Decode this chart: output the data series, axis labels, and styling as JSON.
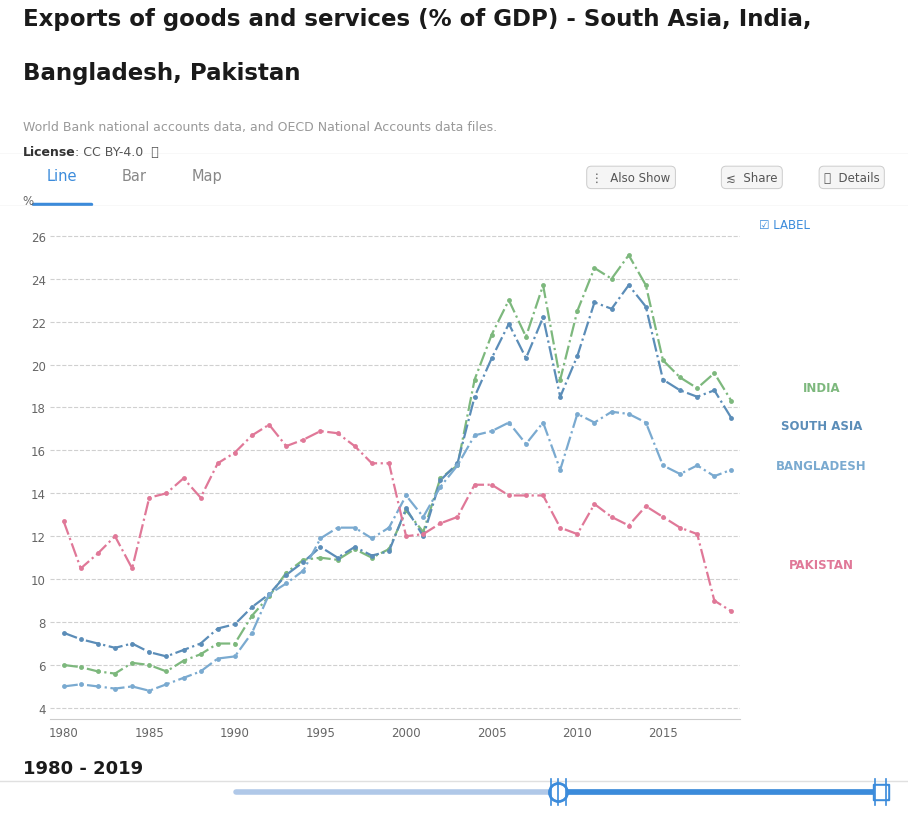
{
  "title_line1": "Exports of goods and services (% of GDP) - South Asia, India,",
  "title_line2": "Bangladesh, Pakistan",
  "subtitle": "World Bank national accounts data, and OECD National Accounts data files.",
  "ylabel": "%",
  "ylim": [
    3.5,
    27
  ],
  "yticks": [
    4,
    6,
    8,
    10,
    12,
    14,
    16,
    18,
    20,
    22,
    24,
    26
  ],
  "xticks": [
    1980,
    1985,
    1990,
    1995,
    2000,
    2005,
    2010,
    2015
  ],
  "bg_color": "#f5f5f5",
  "plot_bg_color": "#ffffff",
  "india_color": "#7db87d",
  "india_label_bg": "#daeeda",
  "sa_color": "#5b8db8",
  "sa_label_bg": "#cfe0f0",
  "bd_color": "#7aaad0",
  "bd_label_bg": "#cfe0f0",
  "pk_color": "#e07898",
  "pk_label_bg": "#fad0dc",
  "india_years": [
    1980,
    1981,
    1982,
    1983,
    1984,
    1985,
    1986,
    1987,
    1988,
    1989,
    1990,
    1991,
    1992,
    1993,
    1994,
    1995,
    1996,
    1997,
    1998,
    1999,
    2000,
    2001,
    2002,
    2003,
    2004,
    2005,
    2006,
    2007,
    2008,
    2009,
    2010,
    2011,
    2012,
    2013,
    2014,
    2015,
    2016,
    2017,
    2018,
    2019
  ],
  "india_values": [
    6.0,
    5.9,
    5.7,
    5.6,
    6.1,
    6.0,
    5.7,
    6.2,
    6.5,
    7.0,
    7.0,
    8.3,
    9.2,
    10.3,
    10.9,
    11.0,
    10.9,
    11.4,
    11.0,
    11.4,
    13.2,
    12.2,
    14.7,
    15.3,
    19.3,
    21.4,
    23.0,
    21.3,
    23.7,
    19.3,
    22.5,
    24.5,
    24.0,
    25.1,
    23.7,
    20.2,
    19.4,
    18.9,
    19.6,
    18.3
  ],
  "sa_years": [
    1980,
    1981,
    1982,
    1983,
    1984,
    1985,
    1986,
    1987,
    1988,
    1989,
    1990,
    1991,
    1992,
    1993,
    1994,
    1995,
    1996,
    1997,
    1998,
    1999,
    2000,
    2001,
    2002,
    2003,
    2004,
    2005,
    2006,
    2007,
    2008,
    2009,
    2010,
    2011,
    2012,
    2013,
    2014,
    2015,
    2016,
    2017,
    2018,
    2019
  ],
  "sa_values": [
    7.5,
    7.2,
    7.0,
    6.8,
    7.0,
    6.6,
    6.4,
    6.7,
    7.0,
    7.7,
    7.9,
    8.7,
    9.3,
    10.2,
    10.8,
    11.5,
    11.0,
    11.5,
    11.1,
    11.3,
    13.3,
    12.0,
    14.6,
    15.4,
    18.5,
    20.3,
    21.9,
    20.3,
    22.2,
    18.5,
    20.4,
    22.9,
    22.6,
    23.7,
    22.7,
    19.3,
    18.8,
    18.5,
    18.8,
    17.5
  ],
  "bd_years": [
    1980,
    1981,
    1982,
    1983,
    1984,
    1985,
    1986,
    1987,
    1988,
    1989,
    1990,
    1991,
    1992,
    1993,
    1994,
    1995,
    1996,
    1997,
    1998,
    1999,
    2000,
    2001,
    2002,
    2003,
    2004,
    2005,
    2006,
    2007,
    2008,
    2009,
    2010,
    2011,
    2012,
    2013,
    2014,
    2015,
    2016,
    2017,
    2018,
    2019
  ],
  "bd_values": [
    5.0,
    5.1,
    5.0,
    4.9,
    5.0,
    4.8,
    5.1,
    5.4,
    5.7,
    6.3,
    6.4,
    7.5,
    9.3,
    9.8,
    10.4,
    11.9,
    12.4,
    12.4,
    11.9,
    12.4,
    13.9,
    12.9,
    14.3,
    15.3,
    16.7,
    16.9,
    17.3,
    16.3,
    17.3,
    15.1,
    17.7,
    17.3,
    17.8,
    17.7,
    17.3,
    15.3,
    14.9,
    15.3,
    14.8,
    15.1
  ],
  "pk_years": [
    1980,
    1981,
    1982,
    1983,
    1984,
    1985,
    1986,
    1987,
    1988,
    1989,
    1990,
    1991,
    1992,
    1993,
    1994,
    1995,
    1996,
    1997,
    1998,
    1999,
    2000,
    2001,
    2002,
    2003,
    2004,
    2005,
    2006,
    2007,
    2008,
    2009,
    2010,
    2011,
    2012,
    2013,
    2014,
    2015,
    2016,
    2017,
    2018,
    2019
  ],
  "pk_values": [
    12.7,
    10.5,
    11.2,
    12.0,
    10.5,
    13.8,
    14.0,
    14.7,
    13.8,
    15.4,
    15.9,
    16.7,
    17.2,
    16.2,
    16.5,
    16.9,
    16.8,
    16.2,
    15.4,
    15.4,
    12.0,
    12.1,
    12.6,
    12.9,
    14.4,
    14.4,
    13.9,
    13.9,
    13.9,
    12.4,
    12.1,
    13.5,
    12.9,
    12.5,
    13.4,
    12.9,
    12.4,
    12.1,
    9.0,
    8.5
  ],
  "date_range": "1980 - 2019",
  "tab_options": [
    "Line",
    "Bar",
    "Map"
  ],
  "active_tab": "Line"
}
